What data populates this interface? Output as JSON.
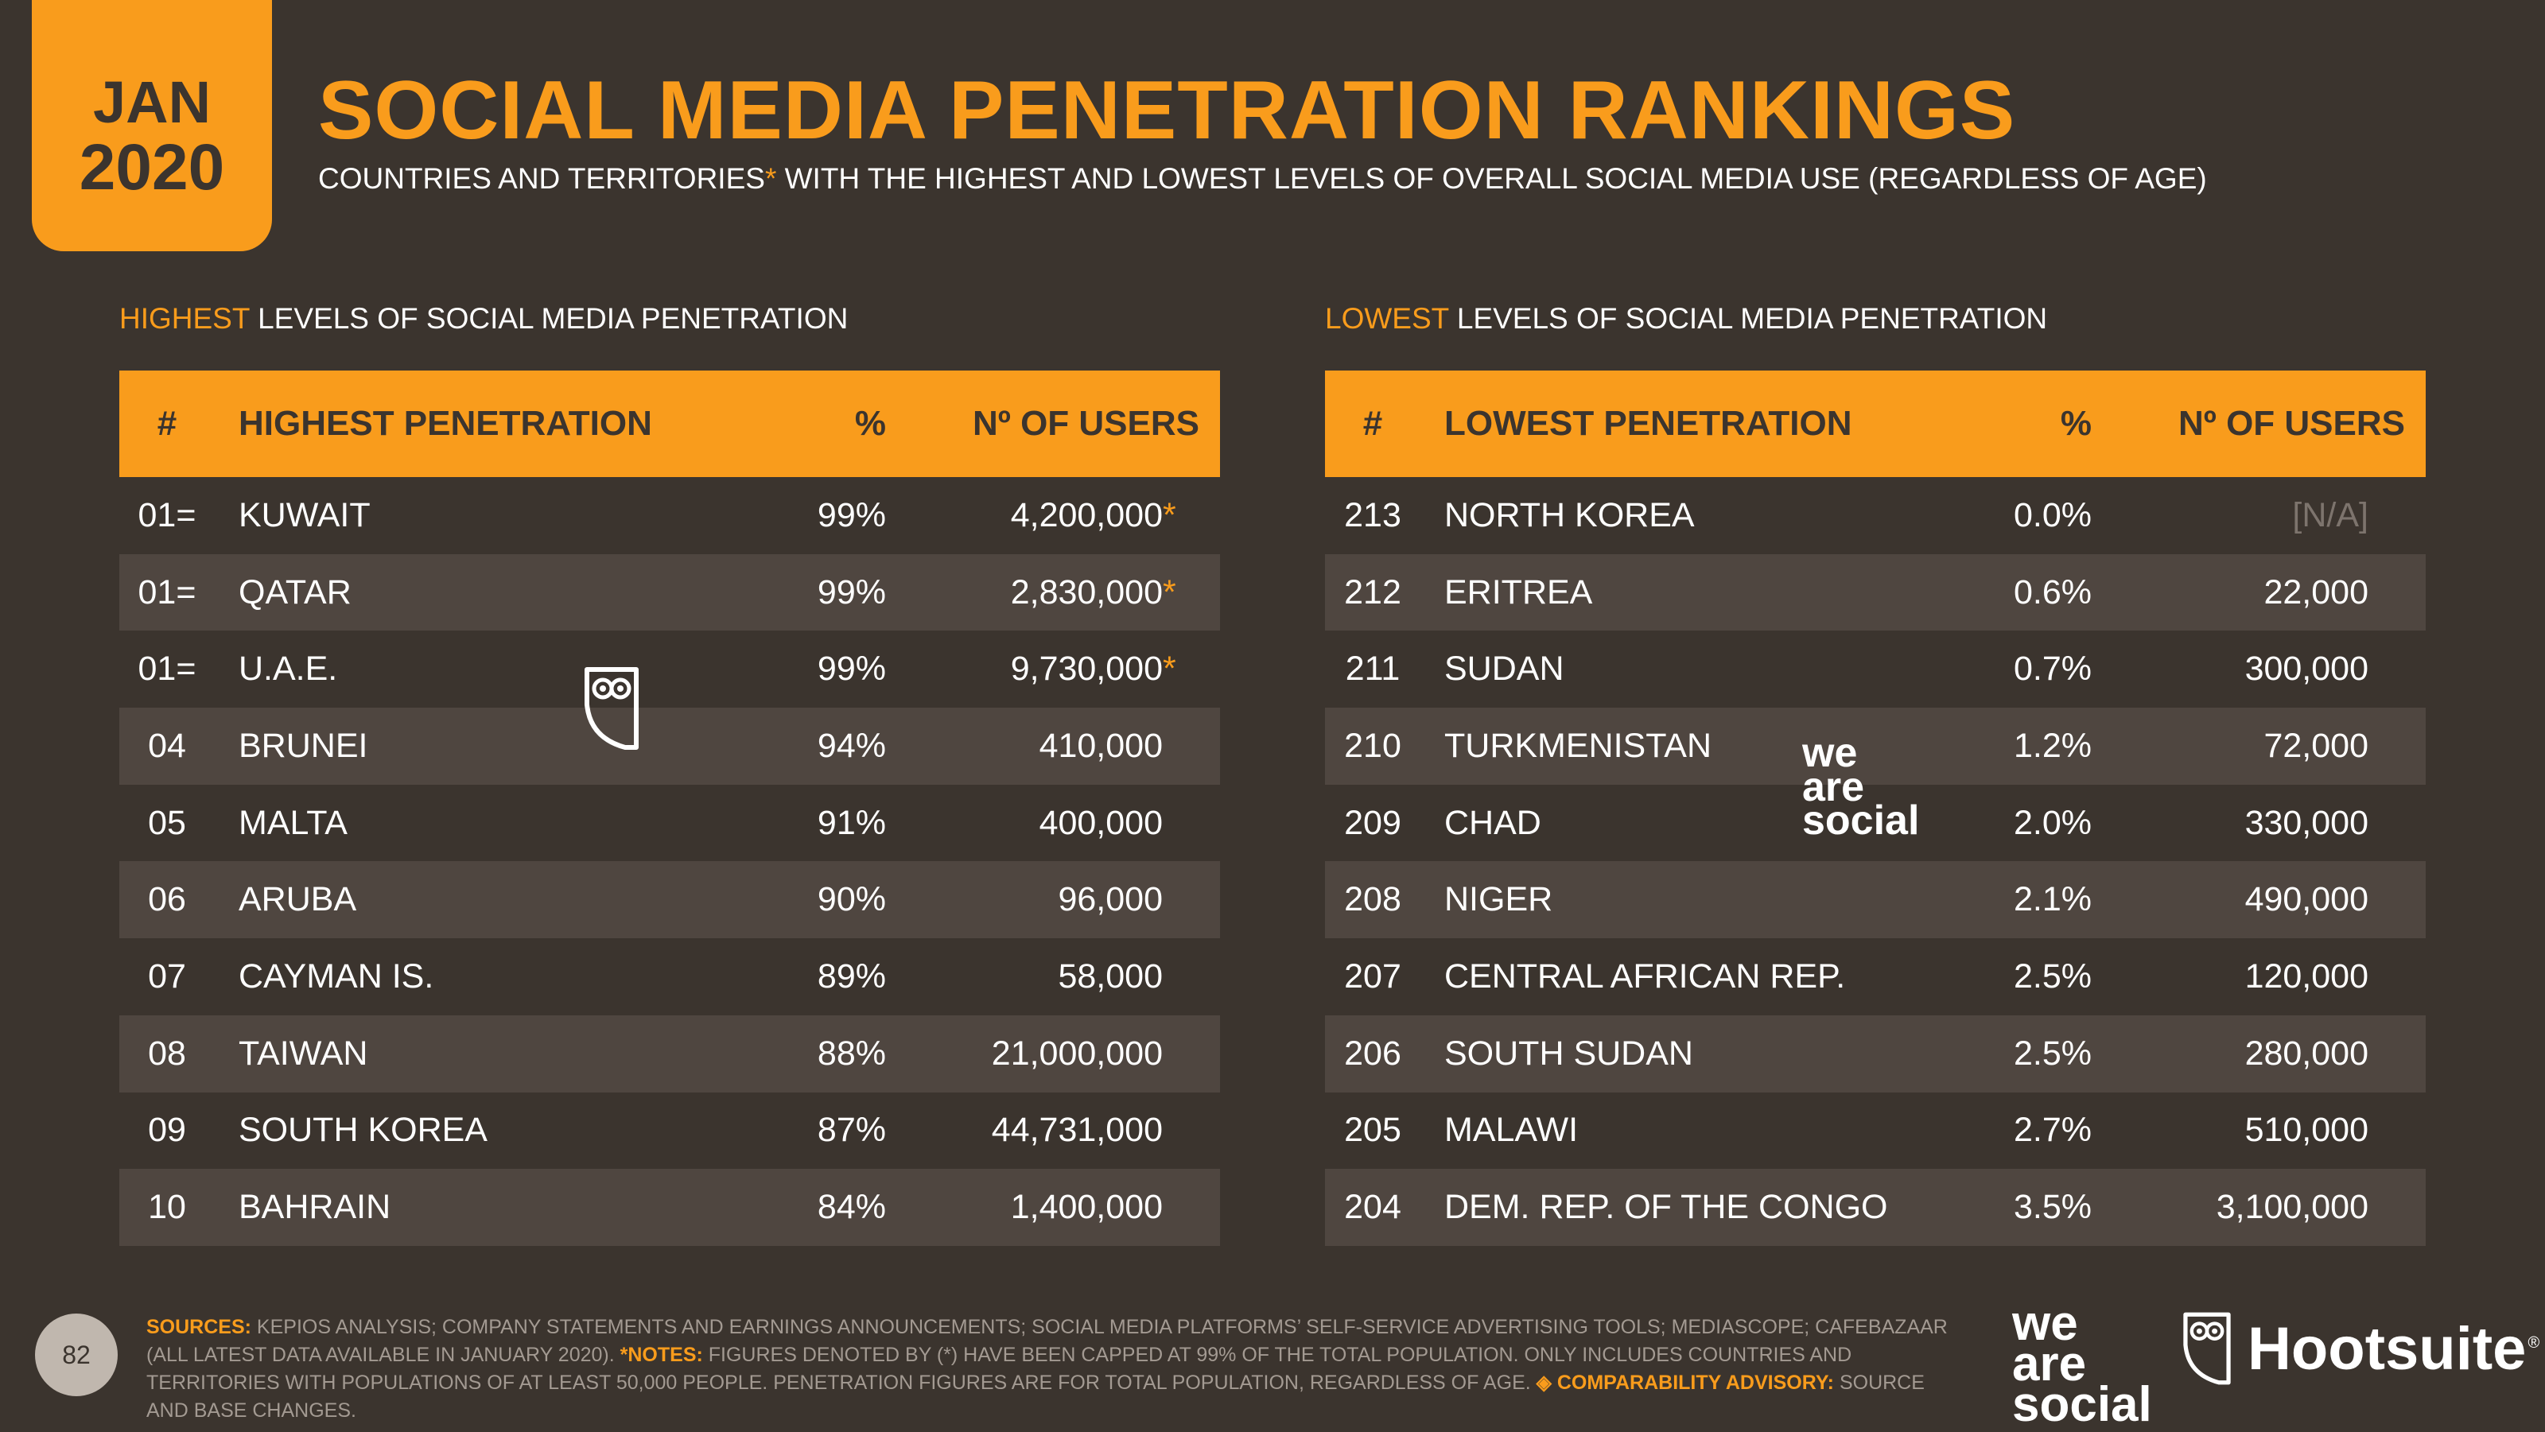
{
  "badge": {
    "month": "JAN",
    "year": "2020"
  },
  "title": "SOCIAL MEDIA PENETRATION RANKINGS",
  "subtitle": {
    "part1": "COUNTRIES AND TERRITORIES",
    "star": "*",
    "part2": " WITH THE HIGHEST AND LOWEST LEVELS OF OVERALL SOCIAL MEDIA USE (REGARDLESS OF AGE)"
  },
  "highest": {
    "label_highlight": "HIGHEST",
    "label_rest": " LEVELS OF SOCIAL MEDIA PENETRATION",
    "columns": [
      "#",
      "HIGHEST PENETRATION",
      "%",
      "Nº OF USERS"
    ],
    "rows": [
      {
        "rank": "01=",
        "name": "KUWAIT",
        "pct": "99%",
        "users": "4,200,000",
        "cap": "*"
      },
      {
        "rank": "01=",
        "name": "QATAR",
        "pct": "99%",
        "users": "2,830,000",
        "cap": "*"
      },
      {
        "rank": "01=",
        "name": "U.A.E.",
        "pct": "99%",
        "users": "9,730,000",
        "cap": "*"
      },
      {
        "rank": "04",
        "name": "BRUNEI",
        "pct": "94%",
        "users": "410,000",
        "cap": ""
      },
      {
        "rank": "05",
        "name": "MALTA",
        "pct": "91%",
        "users": "400,000",
        "cap": ""
      },
      {
        "rank": "06",
        "name": "ARUBA",
        "pct": "90%",
        "users": "96,000",
        "cap": ""
      },
      {
        "rank": "07",
        "name": "CAYMAN IS.",
        "pct": "89%",
        "users": "58,000",
        "cap": ""
      },
      {
        "rank": "08",
        "name": "TAIWAN",
        "pct": "88%",
        "users": "21,000,000",
        "cap": ""
      },
      {
        "rank": "09",
        "name": "SOUTH KOREA",
        "pct": "87%",
        "users": "44,731,000",
        "cap": ""
      },
      {
        "rank": "10",
        "name": "BAHRAIN",
        "pct": "84%",
        "users": "1,400,000",
        "cap": ""
      }
    ]
  },
  "lowest": {
    "label_highlight": "LOWEST",
    "label_rest": " LEVELS OF SOCIAL MEDIA PENETRATION",
    "columns": [
      "#",
      "LOWEST PENETRATION",
      "%",
      "Nº OF USERS"
    ],
    "rows": [
      {
        "rank": "213",
        "name": "NORTH KOREA",
        "pct": "0.0%",
        "users": "[N/A]"
      },
      {
        "rank": "212",
        "name": "ERITREA",
        "pct": "0.6%",
        "users": "22,000"
      },
      {
        "rank": "211",
        "name": "SUDAN",
        "pct": "0.7%",
        "users": "300,000"
      },
      {
        "rank": "210",
        "name": "TURKMENISTAN",
        "pct": "1.2%",
        "users": "72,000"
      },
      {
        "rank": "209",
        "name": "CHAD",
        "pct": "2.0%",
        "users": "330,000"
      },
      {
        "rank": "208",
        "name": "NIGER",
        "pct": "2.1%",
        "users": "490,000"
      },
      {
        "rank": "207",
        "name": "CENTRAL AFRICAN REP.",
        "pct": "2.5%",
        "users": "120,000"
      },
      {
        "rank": "206",
        "name": "SOUTH SUDAN",
        "pct": "2.5%",
        "users": "280,000"
      },
      {
        "rank": "205",
        "name": "MALAWI",
        "pct": "2.7%",
        "users": "510,000"
      },
      {
        "rank": "204",
        "name": "DEM. REP. OF THE CONGO",
        "pct": "3.5%",
        "users": "3,100,000"
      }
    ]
  },
  "footer": {
    "page_number": "82",
    "sources_label": "SOURCES:",
    "sources_text": " KEPIOS ANALYSIS; COMPANY STATEMENTS AND EARNINGS ANNOUNCEMENTS; SOCIAL MEDIA PLATFORMS’ SELF-SERVICE ADVERTISING TOOLS; MEDIASCOPE; CAFEBAZAAR (ALL LATEST DATA AVAILABLE IN JANUARY 2020). ",
    "notes_label": "*NOTES:",
    "notes_text": " FIGURES DENOTED BY (*) HAVE BEEN CAPPED AT 99% OF THE TOTAL POPULATION. ONLY INCLUDES COUNTRIES AND TERRITORIES WITH POPULATIONS OF AT LEAST 50,000 PEOPLE. PENETRATION FIGURES ARE FOR TOTAL POPULATION, REGARDLESS OF AGE. ",
    "advisory_label": "◈ COMPARABILITY ADVISORY:",
    "advisory_text": " SOURCE AND BASE CHANGES."
  },
  "logos": {
    "we_are_social": [
      "we",
      "are",
      "social"
    ],
    "hootsuite": "Hootsuite",
    "hootsuite_mark": "®"
  },
  "colors": {
    "accent": "#f99c1c",
    "background": "#3b342e",
    "row_alt": "#4f4640"
  },
  "icons": {
    "owl_watermark": "hootsuite-owl-icon"
  }
}
